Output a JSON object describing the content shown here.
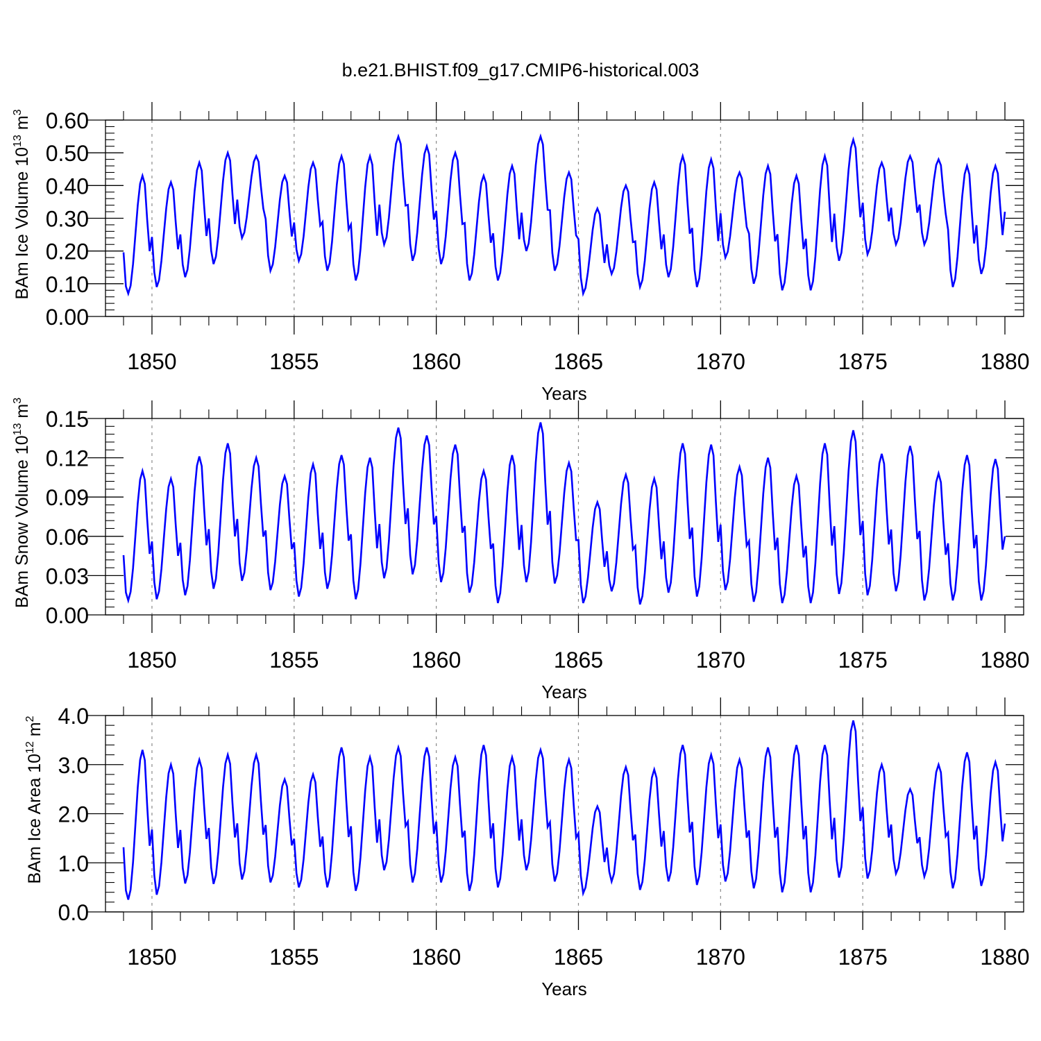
{
  "title": "b.e21.BHIST.f09_g17.CMIP6-historical.003",
  "colors": {
    "line": "#0000ff",
    "axis": "#000000",
    "grid": "#888888"
  },
  "chart_data": [
    {
      "type": "line",
      "name": "ice-volume",
      "ylabel_main": "BAm Ice Volume 10",
      "ylabel_exp": "13",
      "ylabel_unit": " m",
      "ylabel_unit_exp": "3",
      "xlabel": "Years",
      "xlim": [
        1849.0,
        1880.0
      ],
      "ylim": [
        0.0,
        0.6
      ],
      "x_ticks": [
        1850,
        1855,
        1860,
        1865,
        1870,
        1875,
        1880
      ],
      "x_tick_labels": [
        "1850",
        "1855",
        "1860",
        "1865",
        "1870",
        "1875",
        "1880"
      ],
      "y_ticks": [
        0.0,
        0.1,
        0.2,
        0.3,
        0.4,
        0.5,
        0.6
      ],
      "y_tick_labels": [
        "0.00",
        "0.10",
        "0.20",
        "0.30",
        "0.40",
        "0.50",
        "0.60"
      ],
      "annual_max": [
        0.43,
        0.41,
        0.47,
        0.5,
        0.49,
        0.43,
        0.47,
        0.49,
        0.49,
        0.55,
        0.52,
        0.5,
        0.43,
        0.46,
        0.55,
        0.44,
        0.33,
        0.4,
        0.41,
        0.49,
        0.48,
        0.44,
        0.46,
        0.43,
        0.49,
        0.54,
        0.47,
        0.49,
        0.48,
        0.46,
        0.46
      ],
      "annual_min": [
        0.07,
        0.09,
        0.12,
        0.16,
        0.24,
        0.14,
        0.17,
        0.14,
        0.11,
        0.22,
        0.17,
        0.16,
        0.11,
        0.11,
        0.2,
        0.14,
        0.07,
        0.13,
        0.09,
        0.12,
        0.09,
        0.18,
        0.1,
        0.08,
        0.08,
        0.17,
        0.19,
        0.22,
        0.22,
        0.09,
        0.13
      ],
      "end_value": 0.32
    },
    {
      "type": "line",
      "name": "snow-volume",
      "ylabel_main": "BAm Snow Volume 10",
      "ylabel_exp": "13",
      "ylabel_unit": " m",
      "ylabel_unit_exp": "3",
      "xlabel": "Years",
      "xlim": [
        1849.0,
        1880.0
      ],
      "ylim": [
        0.0,
        0.15
      ],
      "x_ticks": [
        1850,
        1855,
        1860,
        1865,
        1870,
        1875,
        1880
      ],
      "x_tick_labels": [
        "1850",
        "1855",
        "1860",
        "1865",
        "1870",
        "1875",
        "1880"
      ],
      "y_ticks": [
        0.0,
        0.03,
        0.06,
        0.09,
        0.12,
        0.15
      ],
      "y_tick_labels": [
        "0.00",
        "0.03",
        "0.06",
        "0.09",
        "0.12",
        "0.15"
      ],
      "annual_max": [
        0.11,
        0.104,
        0.121,
        0.131,
        0.12,
        0.106,
        0.115,
        0.122,
        0.12,
        0.143,
        0.137,
        0.13,
        0.11,
        0.122,
        0.147,
        0.116,
        0.086,
        0.107,
        0.104,
        0.131,
        0.13,
        0.113,
        0.12,
        0.106,
        0.131,
        0.141,
        0.123,
        0.129,
        0.108,
        0.122,
        0.119
      ],
      "annual_min": [
        0.011,
        0.012,
        0.015,
        0.02,
        0.026,
        0.019,
        0.014,
        0.02,
        0.012,
        0.028,
        0.031,
        0.025,
        0.017,
        0.009,
        0.025,
        0.024,
        0.009,
        0.018,
        0.008,
        0.017,
        0.014,
        0.019,
        0.01,
        0.009,
        0.009,
        0.016,
        0.015,
        0.018,
        0.011,
        0.011,
        0.011
      ],
      "end_value": 0.06
    },
    {
      "type": "line",
      "name": "ice-area",
      "ylabel_main": "BAm Ice Area 10",
      "ylabel_exp": "12",
      "ylabel_unit": " m",
      "ylabel_unit_exp": "2",
      "xlabel": "Years",
      "xlim": [
        1849.0,
        1880.0
      ],
      "ylim": [
        0.0,
        4.0
      ],
      "x_ticks": [
        1850,
        1855,
        1860,
        1865,
        1870,
        1875,
        1880
      ],
      "x_tick_labels": [
        "1850",
        "1855",
        "1860",
        "1865",
        "1870",
        "1875",
        "1880"
      ],
      "y_ticks": [
        0.0,
        1.0,
        2.0,
        3.0,
        4.0
      ],
      "y_tick_labels": [
        "0.0",
        "1.0",
        "2.0",
        "3.0",
        "4.0"
      ],
      "annual_max": [
        3.3,
        3.0,
        3.1,
        3.2,
        3.2,
        2.7,
        2.8,
        3.35,
        3.15,
        3.35,
        3.35,
        3.15,
        3.4,
        3.15,
        3.3,
        3.1,
        2.15,
        2.95,
        2.9,
        3.4,
        3.2,
        3.1,
        3.35,
        3.4,
        3.4,
        3.9,
        3.0,
        2.5,
        3.0,
        3.25,
        3.05
      ],
      "annual_min": [
        0.25,
        0.35,
        0.58,
        0.57,
        0.66,
        0.6,
        0.5,
        0.5,
        0.43,
        0.85,
        0.6,
        0.6,
        0.43,
        0.5,
        0.85,
        0.62,
        0.38,
        0.62,
        0.45,
        0.62,
        0.55,
        0.62,
        0.48,
        0.4,
        0.4,
        0.7,
        0.68,
        0.78,
        0.72,
        0.48,
        0.53
      ],
      "end_value": 1.8
    }
  ]
}
